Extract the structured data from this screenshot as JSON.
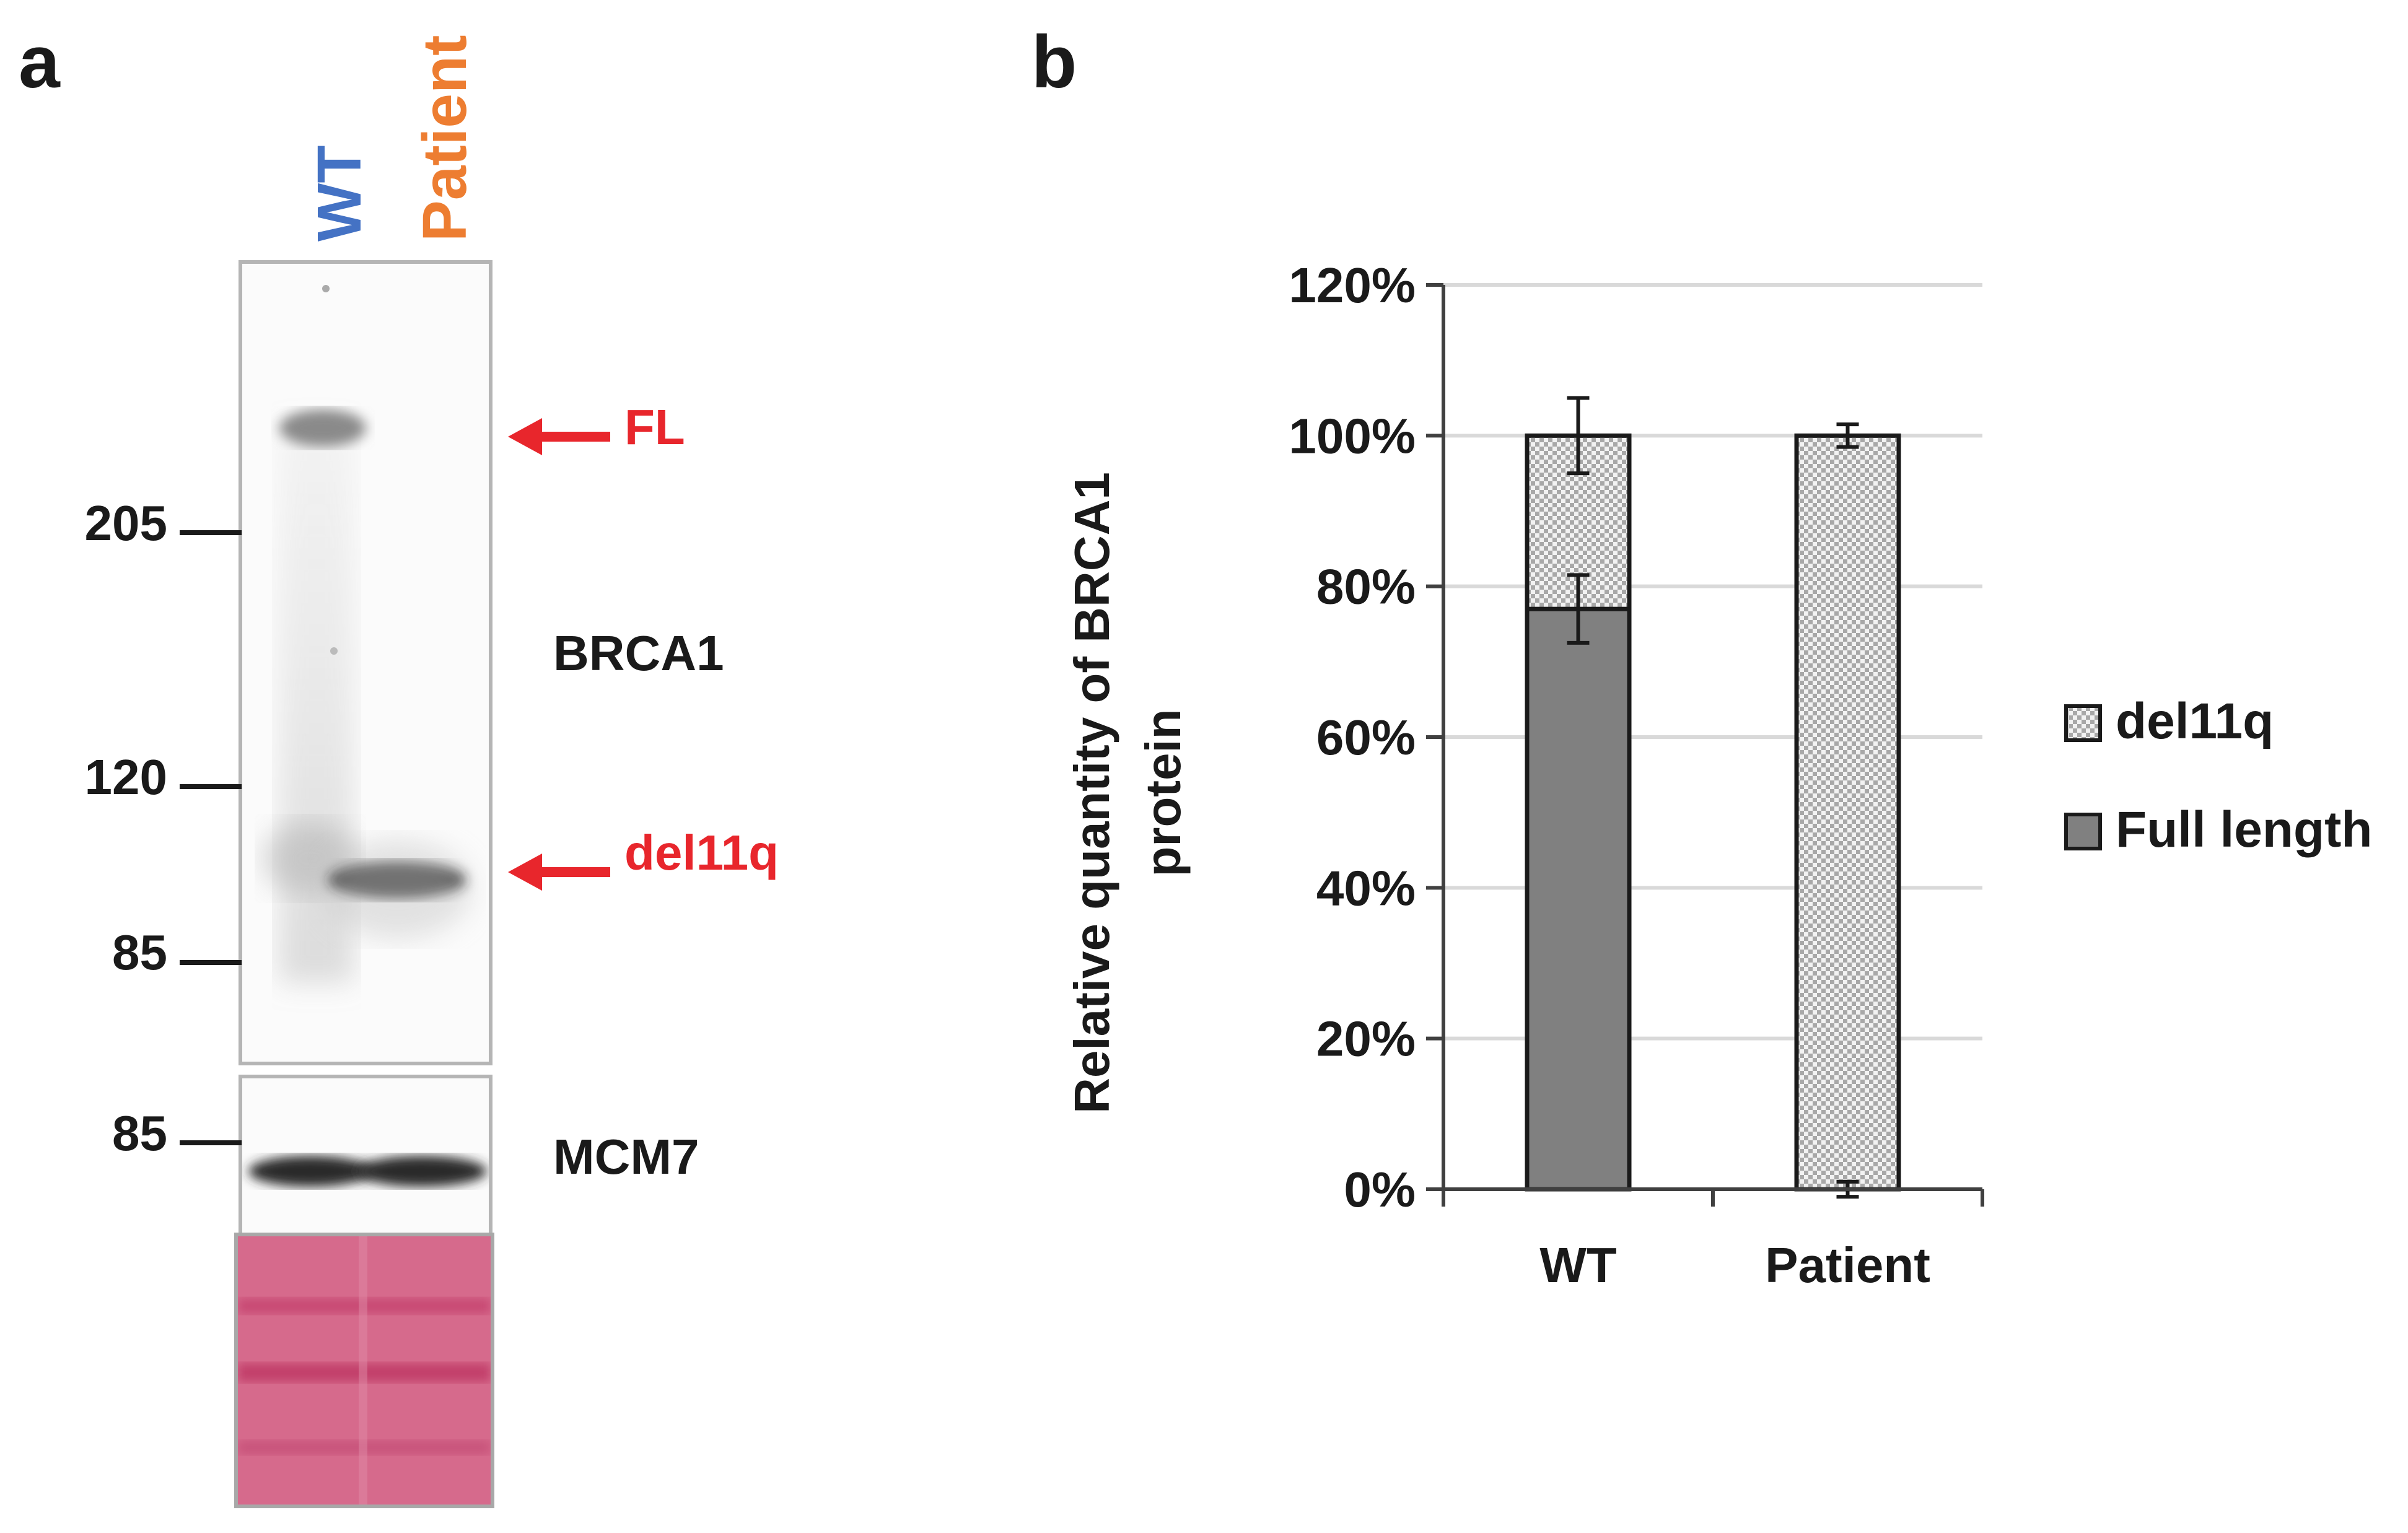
{
  "panel_a": {
    "letter": "a",
    "lanes": [
      "WT",
      "Patient"
    ],
    "lane_colors": {
      "WT": "#4472c4",
      "Patient": "#ed7d31"
    },
    "markers_brca1": [
      "205",
      "120",
      "85"
    ],
    "marker_mcm7": "85",
    "protein_brca1": "BRCA1",
    "protein_mcm7": "MCM7",
    "band_fl": "FL",
    "band_del11q": "del11q",
    "arrow_color": "#e8262c"
  },
  "panel_b": {
    "letter": "b",
    "chart_data": {
      "type": "bar",
      "stacked": true,
      "categories": [
        "WT",
        "Patient"
      ],
      "series": [
        {
          "name": "Full length",
          "values": [
            77,
            0
          ],
          "error": [
            4.5,
            1
          ],
          "color": "#808080",
          "pattern": "solid"
        },
        {
          "name": "del11q",
          "values": [
            23,
            100
          ],
          "error": [
            5,
            1.5
          ],
          "color": "#d9d9d9",
          "pattern": "dotted"
        }
      ],
      "ylabel": "Relative quantity of BRCA1 protein",
      "ylabel_lines": [
        "Relative quantity of BRCA1",
        "protein"
      ],
      "yticks": [
        "0%",
        "20%",
        "40%",
        "60%",
        "80%",
        "100%",
        "120%"
      ],
      "ylim": [
        0,
        120
      ],
      "grid": true,
      "legend_position": "right",
      "legend_order": [
        "del11q",
        "Full length"
      ]
    }
  }
}
